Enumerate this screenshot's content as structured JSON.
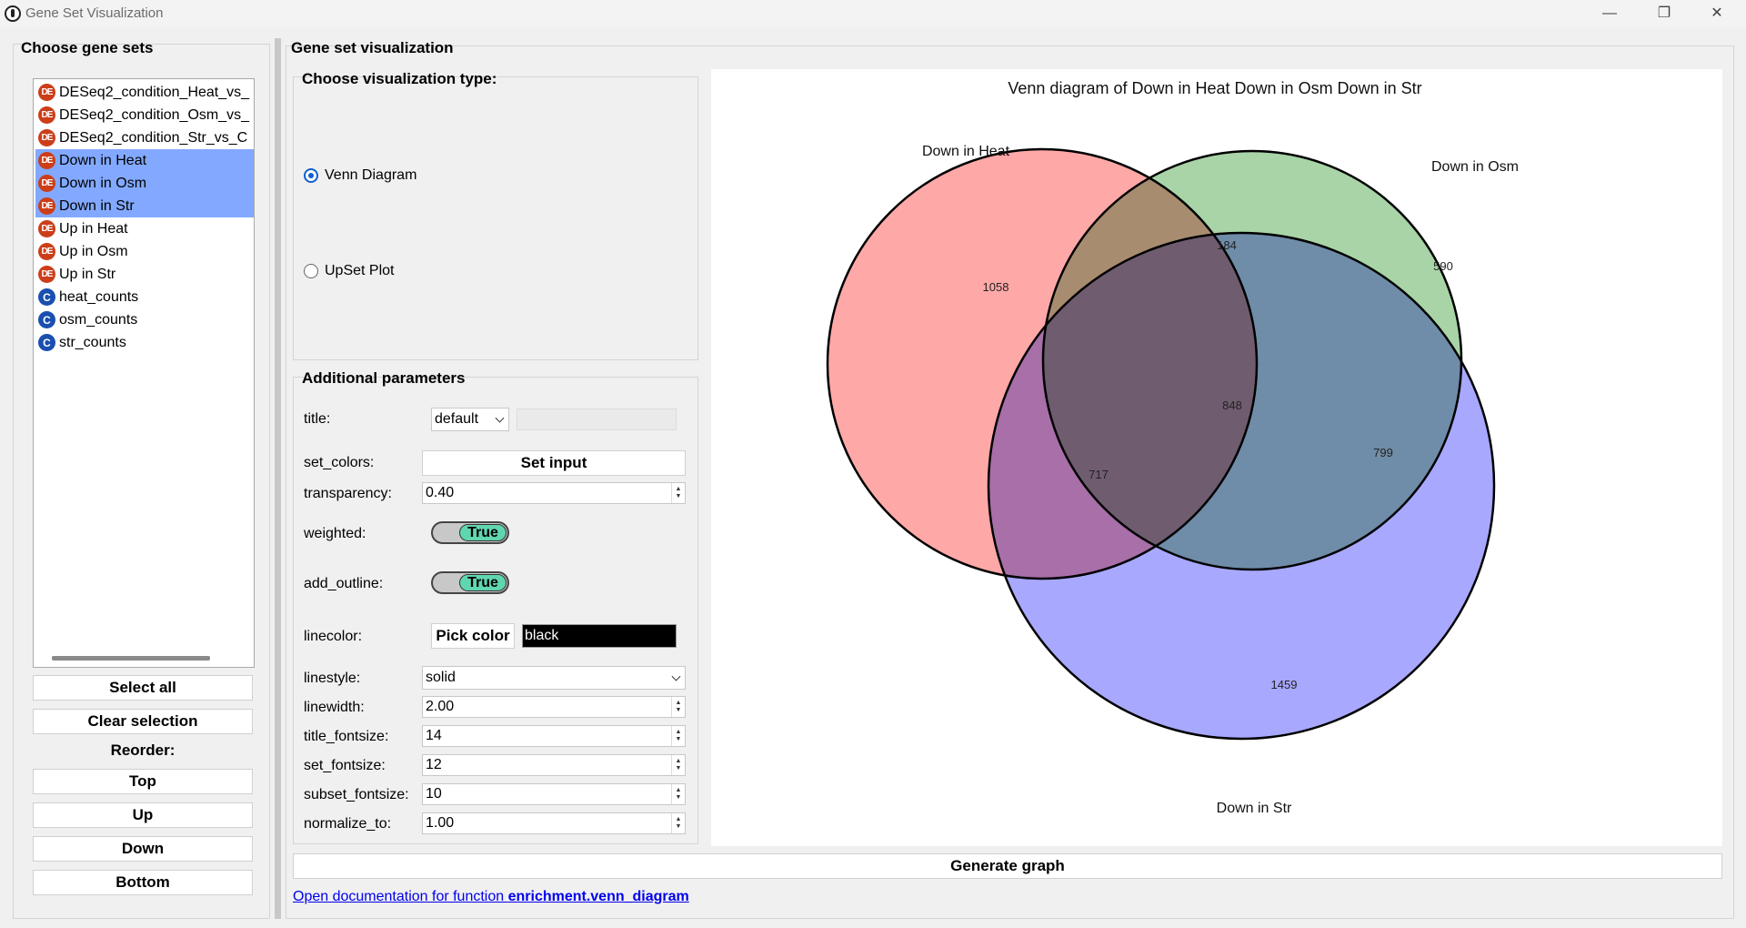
{
  "window": {
    "title": "Gene Set Visualization",
    "controls": {
      "minimize": "—",
      "restore": "❐",
      "close": "✕"
    }
  },
  "left": {
    "title": "Choose gene sets",
    "items": [
      {
        "label": "DESeq2_condition_Heat_vs_",
        "icon": "DE",
        "type": "de",
        "selected": false
      },
      {
        "label": "DESeq2_condition_Osm_vs_",
        "icon": "DE",
        "type": "de",
        "selected": false
      },
      {
        "label": "DESeq2_condition_Str_vs_C",
        "icon": "DE",
        "type": "de",
        "selected": false
      },
      {
        "label": "Down in Heat",
        "icon": "DE",
        "type": "de",
        "selected": true
      },
      {
        "label": "Down in Osm",
        "icon": "DE",
        "type": "de",
        "selected": true
      },
      {
        "label": "Down in Str",
        "icon": "DE",
        "type": "de",
        "selected": true
      },
      {
        "label": "Up in Heat",
        "icon": "DE",
        "type": "de",
        "selected": false
      },
      {
        "label": "Up in Osm",
        "icon": "DE",
        "type": "de",
        "selected": false
      },
      {
        "label": "Up in Str",
        "icon": "DE",
        "type": "de",
        "selected": false
      },
      {
        "label": "heat_counts",
        "icon": "C",
        "type": "c",
        "selected": false
      },
      {
        "label": "osm_counts",
        "icon": "C",
        "type": "c",
        "selected": false
      },
      {
        "label": "str_counts",
        "icon": "C",
        "type": "c",
        "selected": false
      }
    ],
    "select_all": "Select all",
    "clear_selection": "Clear selection",
    "reorder_label": "Reorder:",
    "top": "Top",
    "up": "Up",
    "down": "Down",
    "bottom": "Bottom"
  },
  "main": {
    "title": "Gene set visualization",
    "viz_type": {
      "title": "Choose visualization type:",
      "venn": "Venn Diagram",
      "upset": "UpSet Plot",
      "selected": "venn"
    },
    "params": {
      "title": "Additional parameters",
      "title_label": "title:",
      "title_value": "default",
      "set_colors_label": "set_colors:",
      "set_colors_button": "Set input",
      "transparency_label": "transparency:",
      "transparency_value": "0.40",
      "weighted_label": "weighted:",
      "weighted_value": "True",
      "add_outline_label": "add_outline:",
      "add_outline_value": "True",
      "linecolor_label": "linecolor:",
      "pick_color": "Pick color",
      "linecolor_value": "black",
      "linestyle_label": "linestyle:",
      "linestyle_value": "solid",
      "linewidth_label": "linewidth:",
      "linewidth_value": "2.00",
      "title_fontsize_label": "title_fontsize:",
      "title_fontsize_value": "14",
      "set_fontsize_label": "set_fontsize:",
      "set_fontsize_value": "12",
      "subset_fontsize_label": "subset_fontsize:",
      "subset_fontsize_value": "10",
      "normalize_to_label": "normalize_to:",
      "normalize_to_value": "1.00"
    },
    "generate": "Generate graph",
    "doc_prefix": "Open documentation for function ",
    "doc_func": "enrichment.venn_diagram"
  },
  "chart_data": {
    "type": "venn",
    "title": "Venn diagram of Down in Heat Down in Osm Down in Str",
    "sets": [
      {
        "name": "Down in Heat",
        "color": "#ff9999"
      },
      {
        "name": "Down in Osm",
        "color": "#99cc99"
      },
      {
        "name": "Down in Str",
        "color": "#9999ff"
      }
    ],
    "subsets": {
      "heat_only": 1058,
      "osm_only": 590,
      "str_only": 1459,
      "heat_osm": 184,
      "heat_str": 717,
      "osm_str": 799,
      "all": 848
    },
    "linecolor": "black",
    "transparency": 0.4
  }
}
